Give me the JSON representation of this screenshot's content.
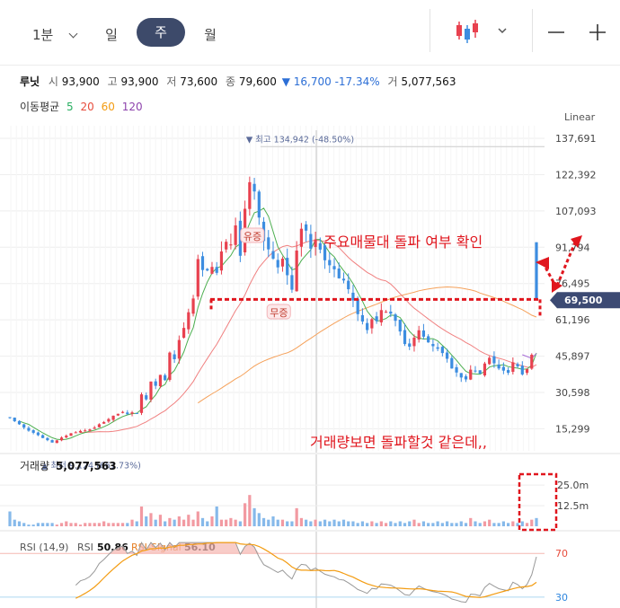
{
  "toolbar": {
    "interval_label": "1분",
    "tabs": [
      {
        "label": "일"
      },
      {
        "label": "주",
        "active": true
      },
      {
        "label": "월"
      }
    ],
    "candle_icon": "candlestick-icon",
    "minus_icon": "minus-icon",
    "plus_icon": "plus-icon"
  },
  "stock": {
    "name": "루닛",
    "open_label": "시",
    "open": "93,900",
    "high_label": "고",
    "high": "93,900",
    "low_label": "저",
    "low": "73,600",
    "close_label": "종",
    "close": "79,600",
    "change": "▼ 16,700 -17.34%",
    "volume_label": "거",
    "volume": "5,077,563"
  },
  "ma_legend": {
    "label": "이동평균",
    "periods": [
      {
        "value": "5",
        "color": "#27ae60"
      },
      {
        "value": "20",
        "color": "#e74c3c"
      },
      {
        "value": "60",
        "color": "#f39c12"
      },
      {
        "value": "120",
        "color": "#8e44ad"
      }
    ]
  },
  "colors": {
    "up": "#e8414f",
    "down": "#3c8de0",
    "annotation": "#e0161e"
  },
  "chart_data": [
    {
      "type": "candlestick",
      "scale_label": "Linear",
      "price_ticks": [
        "137,691",
        "122,392",
        "107,093",
        "91,794",
        "76,495",
        "61,196",
        "45,897",
        "30,598",
        "15,299"
      ],
      "price_ticks_num": [
        137691,
        122392,
        107093,
        91794,
        76495,
        61196,
        45897,
        30598,
        15299
      ],
      "ylim": [
        6000,
        143000
      ],
      "current_price": "69,500",
      "current_price_num": 69500,
      "max_label": "▼ 최고 134,942 (-48.50%)",
      "max_value": 134942,
      "min_label": "▲ 최저 9,124 (661.73%)",
      "min_value": 9124,
      "events": [
        {
          "label": "유증"
        },
        {
          "label": "무증"
        }
      ],
      "annotations": [
        {
          "text": "주요매물대 돌파 여부 확인"
        },
        {
          "text": "거래량보면 돌파할것 같은데,,"
        }
      ],
      "support_line": 69800,
      "series_close": [
        19800,
        18500,
        17200,
        15800,
        14500,
        13600,
        12600,
        11400,
        10500,
        9500,
        10400,
        11600,
        12400,
        13400,
        13800,
        14400,
        14600,
        15000,
        15800,
        17200,
        18100,
        19400,
        20800,
        21600,
        22400,
        21400,
        22200,
        21600,
        29800,
        27700,
        35200,
        33400,
        38000,
        35800,
        47400,
        44600,
        52700,
        57800,
        64400,
        70200,
        86800,
        82200,
        82000,
        83500,
        81000,
        90000,
        94100,
        93000,
        101000,
        88200,
        108000,
        119200,
        115300,
        104300,
        94400,
        90900,
        87000,
        83300,
        87000,
        80000,
        73900,
        90400,
        99600,
        98800,
        91200,
        95100,
        90800,
        86300,
        84200,
        82500,
        78700,
        77800,
        74100,
        69400,
        63600,
        60500,
        56900,
        61500,
        60700,
        65300,
        64600,
        63800,
        60800,
        56300,
        51000,
        49900,
        53700,
        56800,
        54100,
        51700,
        50100,
        49000,
        47200,
        44800,
        40700,
        39000,
        36900,
        36100,
        40200,
        39800,
        38500,
        42800,
        45200,
        42900,
        40700,
        39800,
        38900,
        43300,
        41600,
        38200,
        40500,
        46500,
        69500
      ]
    },
    {
      "type": "bar",
      "title": "거래량",
      "value_text": "5,077,563",
      "value_ticks": [
        "25.0m",
        "12.5m"
      ],
      "value_ticks_num": [
        25,
        12.5
      ],
      "ylim": [
        0,
        36
      ],
      "values_m": [
        9,
        4,
        3,
        2,
        1,
        1,
        2,
        2,
        2,
        2,
        1,
        2,
        3,
        2,
        2,
        1,
        2,
        2,
        2,
        2,
        3,
        2,
        2,
        2,
        2,
        2,
        4,
        3,
        12,
        6,
        8,
        4,
        7,
        3,
        5,
        4,
        6,
        4,
        7,
        4,
        9,
        5,
        3,
        6,
        12,
        4,
        4,
        5,
        4,
        3,
        14,
        19,
        11,
        8,
        5,
        4,
        6,
        4,
        4,
        3,
        3,
        11,
        5,
        4,
        3,
        4,
        3,
        4,
        3,
        4,
        3,
        4,
        3,
        3,
        2,
        3,
        2,
        3,
        2,
        3,
        2,
        3,
        2,
        3,
        2,
        3,
        4,
        2,
        3,
        2,
        2,
        3,
        2,
        3,
        2,
        2,
        3,
        2,
        5,
        3,
        2,
        3,
        4,
        2,
        2,
        3,
        2,
        3,
        2,
        3,
        2,
        4,
        5
      ]
    },
    {
      "type": "line",
      "title": "RSI (14,9)",
      "series": [
        {
          "name": "RSI",
          "value_text": "50.86",
          "color": "#9e9e9e"
        },
        {
          "name": "RSI-Signal",
          "value_text": "56.10",
          "color": "#f39c12"
        }
      ],
      "levels": [
        {
          "label": "70",
          "value": 70
        },
        {
          "label": "30",
          "value": 30
        }
      ],
      "ylim": [
        20,
        85
      ]
    }
  ]
}
